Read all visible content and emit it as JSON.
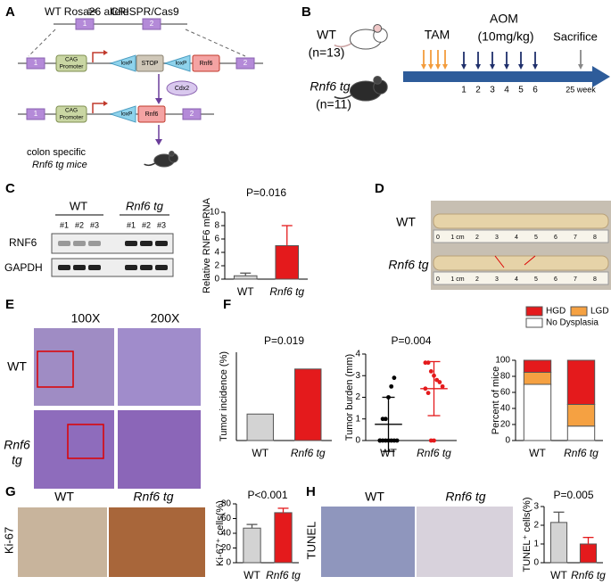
{
  "panels": {
    "letters": [
      "A",
      "B",
      "C",
      "D",
      "E",
      "F",
      "G",
      "H"
    ]
  },
  "panel_a": {
    "wt_allele": "WT Rosa26 allele",
    "crispr": "CRISPR/Cas9",
    "exon1": "1",
    "exon2": "2",
    "cag": [
      "CAG",
      "Promoter"
    ],
    "loxp": "loxP",
    "stop": "STOP",
    "rnf6": "Rnf6",
    "cdx2": "Cdx2",
    "caption": [
      "colon specific",
      "Rnf6 tg mice"
    ]
  },
  "panel_b": {
    "wt": "WT",
    "wt_n": "(n=13)",
    "tg": "Rnf6 tg",
    "tg_n": "(n=11)",
    "tam": "TAM",
    "aom": "AOM",
    "dose": "(10mg/kg)",
    "sacrifice": "Sacrifice",
    "injections": [
      "1",
      "2",
      "3",
      "4",
      "5",
      "6"
    ],
    "endpoint": "25 week"
  },
  "panel_c": {
    "groups": [
      "WT",
      "Rnf6 tg"
    ],
    "lanes": [
      "#1",
      "#2",
      "#3"
    ],
    "rows": [
      "RNF6",
      "GAPDH"
    ]
  },
  "panel_d": {
    "rows": [
      "WT",
      "Rnf6 tg"
    ],
    "ruler": [
      "0",
      "1 cm",
      "2",
      "3",
      "4",
      "5",
      "6",
      "7",
      "8"
    ]
  },
  "panel_e": {
    "columns": [
      "100X",
      "200X"
    ],
    "rows": [
      "WT",
      "Rnf6",
      "tg"
    ]
  },
  "panel_g": {
    "columns": [
      "WT",
      "Rnf6 tg"
    ],
    "stain": "Ki-67"
  },
  "panel_h": {
    "columns": [
      "WT",
      "Rnf6 tg"
    ],
    "stain": "TUNEL"
  },
  "chart_data": [
    {
      "type": "bar",
      "ylabel": "Relative RNF6 mRNA",
      "annotation": "P=0.016",
      "categories": [
        "WT",
        "Rnf6 tg"
      ],
      "values": [
        0.5,
        5.0
      ],
      "errors": [
        0.4,
        3.0
      ],
      "colors": [
        "#d3d3d3",
        "#e41a1c"
      ],
      "ylim": [
        0,
        10
      ],
      "yticks": [
        0,
        2,
        4,
        6,
        8,
        10
      ]
    },
    {
      "type": "bar",
      "ylabel": "Tumor incidence (%)",
      "annotation": "P=0.019",
      "categories": [
        "WT",
        "Rnf6 tg"
      ],
      "values": [
        30,
        81
      ],
      "colors": [
        "#d3d3d3",
        "#e41a1c"
      ],
      "ylim": [
        0,
        100
      ]
    },
    {
      "type": "strip",
      "ylabel": "Tumor burden (mm)",
      "annotation": "P=0.004",
      "categories": [
        "WT",
        "Rnf6 tg"
      ],
      "points": [
        [
          0,
          0,
          0,
          0,
          0,
          0,
          0,
          0,
          1.0,
          1.0,
          2.0,
          2.5,
          2.9
        ],
        [
          3.6,
          3.6,
          3.2,
          3.0,
          2.8,
          2.7,
          2.5,
          2.4,
          2.2,
          0,
          0
        ]
      ],
      "mean": [
        0.75,
        2.4
      ],
      "sd": [
        1.25,
        1.25
      ],
      "colors": [
        "#000000",
        "#e41a1c"
      ],
      "ylim": [
        0,
        4
      ],
      "yticks": [
        0,
        1,
        2,
        3,
        4
      ]
    },
    {
      "type": "stacked",
      "ylabel": "Percent of mice",
      "categories": [
        "WT",
        "Rnf6 tg"
      ],
      "legend": "top",
      "series": [
        {
          "name": "No Dysplasia",
          "color": "#ffffff",
          "values": [
            70,
            18
          ]
        },
        {
          "name": "LGD",
          "color": "#f5a142",
          "values": [
            15,
            27
          ]
        },
        {
          "name": "HGD",
          "color": "#e41a1c",
          "values": [
            15,
            55
          ]
        }
      ],
      "ylim": [
        0,
        100
      ],
      "yticks": [
        0,
        20,
        40,
        60,
        80,
        100
      ]
    },
    {
      "type": "bar",
      "ylabel": "Ki-67⁺ cells(%)",
      "annotation": "P<0.001",
      "categories": [
        "WT",
        "Rnf6 tg"
      ],
      "values": [
        47,
        68
      ],
      "errors": [
        5,
        6
      ],
      "colors": [
        "#d3d3d3",
        "#e41a1c"
      ],
      "ylim": [
        0,
        80
      ],
      "yticks": [
        0,
        20,
        40,
        60,
        80
      ]
    },
    {
      "type": "bar",
      "ylabel": "TUNEL⁺ cells(%)",
      "annotation": "P=0.005",
      "categories": [
        "WT",
        "Rnf6 tg"
      ],
      "values": [
        2.15,
        1.0
      ],
      "errors": [
        0.55,
        0.35
      ],
      "colors": [
        "#d3d3d3",
        "#e41a1c"
      ],
      "ylim": [
        0,
        3
      ],
      "yticks": [
        0,
        1,
        2,
        3
      ]
    }
  ]
}
